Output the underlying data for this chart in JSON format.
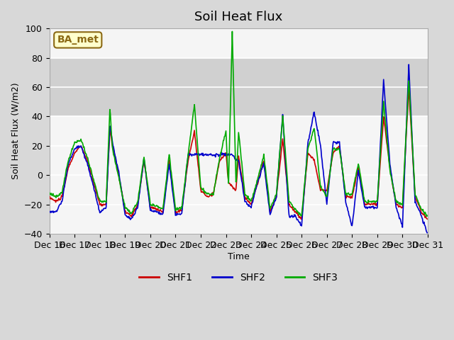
{
  "title": "Soil Heat Flux",
  "ylabel": "Soil Heat Flux (W/m2)",
  "xlabel": "Time",
  "ylim": [
    -40,
    100
  ],
  "shaded_region": [
    40,
    80
  ],
  "plot_bg_color": "#f5f5f5",
  "annotation_text": "BA_met",
  "annotation_bg": "#ffffcc",
  "annotation_border": "#8B6914",
  "series_colors": {
    "SHF1": "#cc0000",
    "SHF2": "#0000cc",
    "SHF3": "#00aa00"
  },
  "tick_labels": [
    "Dec 16",
    "Dec 17",
    "Dec 18",
    "Dec 19",
    "Dec 20",
    "Dec 21",
    "Dec 22",
    "Dec 23",
    "Dec 24",
    "Dec 25",
    "Dec 26",
    "Dec 27",
    "Dec 28",
    "Dec 29",
    "Dec 30",
    "Dec 31"
  ],
  "num_days": 15
}
